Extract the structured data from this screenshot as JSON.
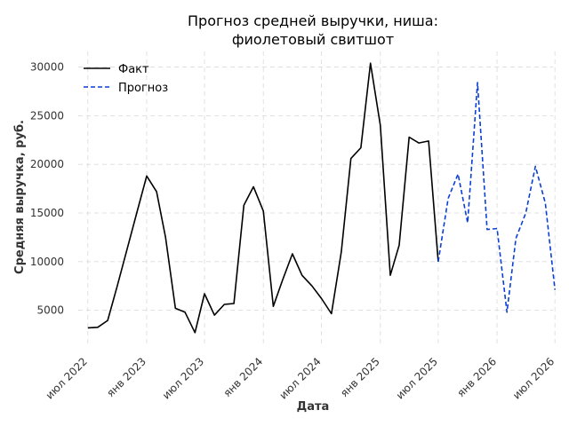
{
  "chart_data": {
    "type": "line",
    "title": [
      "Прогноз средней выручки, ниша:",
      "фиолетовый свитшот"
    ],
    "xlabel": "Дата",
    "ylabel": "Средняя выручка, руб.",
    "ylim": [
      1500,
      31600
    ],
    "xlim": [
      "2022-06-01",
      "2026-06-25"
    ],
    "grid": true,
    "legend": "top-left",
    "y_ticks": [
      5000,
      10000,
      15000,
      20000,
      25000,
      30000
    ],
    "y_tick_labels": [
      "5000",
      "10000",
      "15000",
      "20000",
      "25000",
      "30000"
    ],
    "x_ticks": [
      {
        "date": "2022-07-01",
        "label": "июл 2022"
      },
      {
        "date": "2023-01-01",
        "label": "янв 2023"
      },
      {
        "date": "2023-07-01",
        "label": "июл 2023"
      },
      {
        "date": "2024-01-01",
        "label": "янв 2024"
      },
      {
        "date": "2024-07-01",
        "label": "июл 2024"
      },
      {
        "date": "2025-01-01",
        "label": "янв 2025"
      },
      {
        "date": "2025-07-01",
        "label": "июл 2025"
      },
      {
        "date": "2026-01-01",
        "label": "янв 2026"
      },
      {
        "date": "2026-07-01",
        "label": "июл 2026"
      }
    ],
    "series": [
      {
        "name": "Факт",
        "color": "#000000",
        "style": "solid",
        "x": [
          "2022-07-01",
          "2022-08-01",
          "2022-09-01",
          "2022-10-01",
          "2022-11-01",
          "2022-12-01",
          "2023-01-01",
          "2023-02-01",
          "2023-03-01",
          "2023-04-01",
          "2023-05-01",
          "2023-06-01",
          "2023-07-01",
          "2023-08-01",
          "2023-09-01",
          "2023-10-01",
          "2023-11-01",
          "2023-12-01",
          "2024-01-01",
          "2024-02-01",
          "2024-03-01",
          "2024-04-01",
          "2024-05-01",
          "2024-06-01",
          "2024-07-01",
          "2024-08-01",
          "2024-09-01",
          "2024-10-01",
          "2024-11-01",
          "2024-12-01",
          "2025-01-01",
          "2025-02-01",
          "2025-03-01",
          "2025-04-01",
          "2025-05-01",
          "2025-06-01",
          "2025-07-01"
        ],
        "y": [
          3200,
          3250,
          3950,
          7500,
          11300,
          15000,
          18800,
          17200,
          12500,
          5200,
          4800,
          2700,
          6700,
          4500,
          5600,
          5700,
          15800,
          17700,
          15200,
          5400,
          8100,
          10800,
          8600,
          7500,
          6200,
          4650,
          11000,
          20600,
          21700,
          30400,
          24000,
          8600,
          11700,
          22800,
          22200,
          22400,
          10000
        ]
      },
      {
        "name": "Прогноз",
        "color": "#0a3fd6",
        "style": "dashed",
        "x": [
          "2025-07-01",
          "2025-08-01",
          "2025-09-01",
          "2025-10-01",
          "2025-11-01",
          "2025-12-01",
          "2026-01-01",
          "2026-02-01",
          "2026-03-01",
          "2026-04-01",
          "2026-05-01",
          "2026-06-01",
          "2026-07-01"
        ],
        "y": [
          10000,
          16500,
          19000,
          14000,
          28400,
          13300,
          13400,
          4800,
          12400,
          15000,
          19800,
          16000,
          7100
        ]
      }
    ]
  }
}
